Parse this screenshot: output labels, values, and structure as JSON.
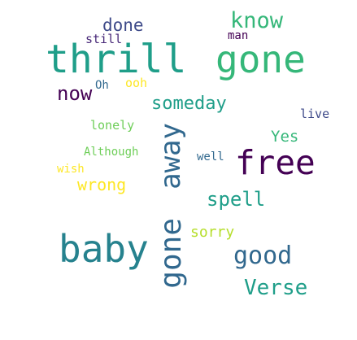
{
  "colors": {
    "background": "#ffffff",
    "dark_purple": "#440154",
    "indigo": "#482878",
    "slate_blue": "#3e4a89",
    "steel_blue": "#31688e",
    "teal": "#26828e",
    "sea_green": "#1f9e89",
    "green": "#35b779",
    "light_green": "#6ece58",
    "lime": "#b5de2b",
    "yellow": "#fde725"
  },
  "words": {
    "thrill": "thrill",
    "gone_large": "gone",
    "know": "know",
    "done": "done",
    "still": "still",
    "man": "man",
    "now": "now",
    "oh": "Oh",
    "ooh": "ooh",
    "someday": "someday",
    "live": "live",
    "lonely": "lonely",
    "yes": "Yes",
    "although": "Although",
    "away": "away",
    "free": "free",
    "well": "well",
    "wish": "wish",
    "wrong": "wrong",
    "spell": "spell",
    "sorry": "sorry",
    "baby": "baby",
    "gone_vertical": "gone",
    "good": "good",
    "verse": "Verse"
  }
}
